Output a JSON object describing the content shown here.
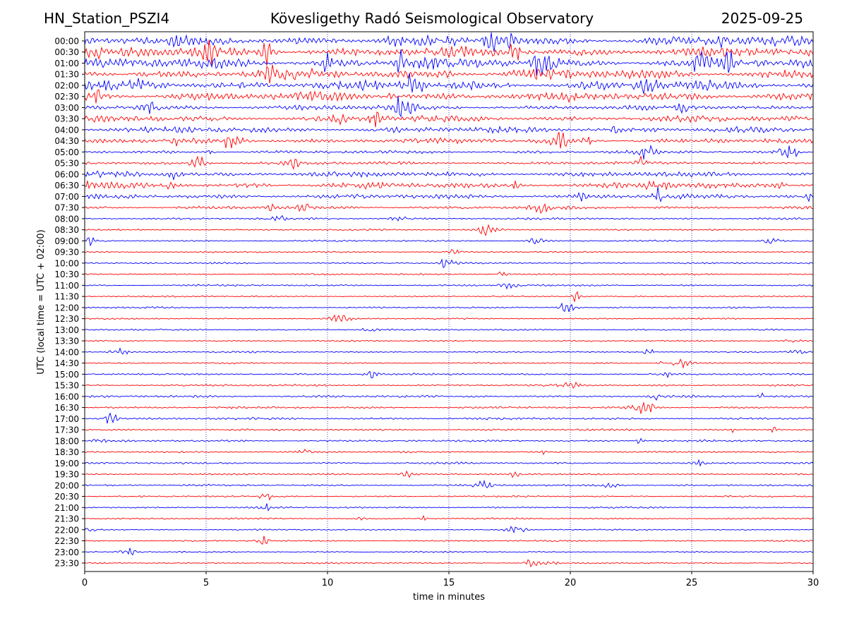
{
  "header": {
    "station": "HN_Station_PSZI4",
    "observatory": "Kövesligethy Radó Seismological Observatory",
    "date": "2025-09-25"
  },
  "chart_data": {
    "type": "line",
    "xlabel": "time in minutes",
    "ylabel": "UTC (local time = UTC + 02:00)",
    "xlim": [
      0,
      30
    ],
    "xticks": [
      "0",
      "5",
      "10",
      "15",
      "20",
      "25",
      "30"
    ],
    "vertical_gridlines_at": [
      5,
      10,
      15,
      20,
      25
    ],
    "grid": true,
    "trace_colors": [
      "#0000ff",
      "#ff0000"
    ],
    "rows": [
      {
        "label": "00:00",
        "activity": 0.95
      },
      {
        "label": "00:30",
        "activity": 1.0
      },
      {
        "label": "01:00",
        "activity": 1.0
      },
      {
        "label": "01:30",
        "activity": 1.0
      },
      {
        "label": "02:00",
        "activity": 1.0
      },
      {
        "label": "02:30",
        "activity": 0.9
      },
      {
        "label": "03:00",
        "activity": 0.45
      },
      {
        "label": "03:30",
        "activity": 0.6
      },
      {
        "label": "04:00",
        "activity": 0.6
      },
      {
        "label": "04:30",
        "activity": 0.45
      },
      {
        "label": "05:00",
        "activity": 0.25
      },
      {
        "label": "05:30",
        "activity": 0.25
      },
      {
        "label": "06:00",
        "activity": 0.5
      },
      {
        "label": "06:30",
        "activity": 0.55
      },
      {
        "label": "07:00",
        "activity": 0.4
      },
      {
        "label": "07:30",
        "activity": 0.22
      },
      {
        "label": "08:00",
        "activity": 0.1
      },
      {
        "label": "08:30",
        "activity": 0.05
      },
      {
        "label": "09:00",
        "activity": 0.05
      },
      {
        "label": "09:30",
        "activity": 0.05
      },
      {
        "label": "10:00",
        "activity": 0.06
      },
      {
        "label": "10:30",
        "activity": 0.05
      },
      {
        "label": "11:00",
        "activity": 0.05
      },
      {
        "label": "11:30",
        "activity": 0.03
      },
      {
        "label": "12:00",
        "activity": 0.05
      },
      {
        "label": "12:30",
        "activity": 0.03
      },
      {
        "label": "13:00",
        "activity": 0.04
      },
      {
        "label": "13:30",
        "activity": 0.03
      },
      {
        "label": "14:00",
        "activity": 0.04
      },
      {
        "label": "14:30",
        "activity": 0.04
      },
      {
        "label": "15:00",
        "activity": 0.08
      },
      {
        "label": "15:30",
        "activity": 0.1
      },
      {
        "label": "16:00",
        "activity": 0.15
      },
      {
        "label": "16:30",
        "activity": 0.12
      },
      {
        "label": "17:00",
        "activity": 0.12
      },
      {
        "label": "17:30",
        "activity": 0.1
      },
      {
        "label": "18:00",
        "activity": 0.1
      },
      {
        "label": "18:30",
        "activity": 0.08
      },
      {
        "label": "19:00",
        "activity": 0.08
      },
      {
        "label": "19:30",
        "activity": 0.06
      },
      {
        "label": "20:00",
        "activity": 0.08
      },
      {
        "label": "20:30",
        "activity": 0.05
      },
      {
        "label": "21:00",
        "activity": 0.06
      },
      {
        "label": "21:30",
        "activity": 0.04
      },
      {
        "label": "22:00",
        "activity": 0.02
      },
      {
        "label": "22:30",
        "activity": 0.03
      },
      {
        "label": "23:00",
        "activity": 0.02
      },
      {
        "label": "23:30",
        "activity": 0.02
      }
    ]
  }
}
